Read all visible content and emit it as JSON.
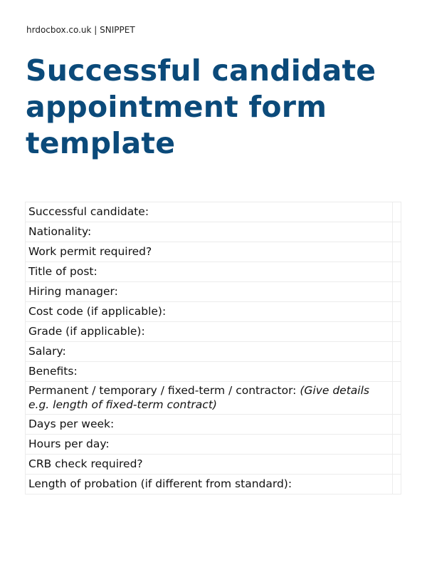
{
  "header": {
    "site": "hrdocbox.co.uk | SNIPPET"
  },
  "title": "Successful candidate appointment form template",
  "form": {
    "rows": [
      {
        "label": "Successful candidate:",
        "value": ""
      },
      {
        "label": "Nationality:",
        "value": ""
      },
      {
        "label": "Work permit required?",
        "value": ""
      },
      {
        "label": "Title of post:",
        "value": ""
      },
      {
        "label": "Hiring manager:",
        "value": ""
      },
      {
        "label": "Cost code (if applicable):",
        "value": ""
      },
      {
        "label": "Grade (if applicable):",
        "value": ""
      },
      {
        "label": "Salary:",
        "value": ""
      },
      {
        "label": "Benefits:",
        "value": ""
      },
      {
        "label": "Permanent / temporary / fixed-term / contractor: ",
        "note": "(Give details e.g. length of fixed-term contract)",
        "value": ""
      },
      {
        "label": "Days per week:",
        "value": ""
      },
      {
        "label": "Hours per day:",
        "value": ""
      },
      {
        "label": "CRB check required?",
        "value": ""
      },
      {
        "label": "Length of probation (if different from standard):",
        "value": ""
      }
    ]
  },
  "colors": {
    "title": "#0b4a7a",
    "border": "#ececec"
  }
}
